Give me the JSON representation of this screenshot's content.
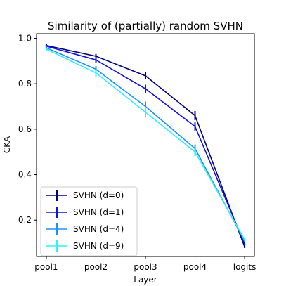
{
  "chart_data": {
    "type": "line",
    "title": "Similarity of (partially) random SVHN",
    "xlabel": "Layer",
    "ylabel": "CKA",
    "categories": [
      "pool1",
      "pool2",
      "pool3",
      "pool4",
      "logits"
    ],
    "ylim": [
      0.04,
      1.02
    ],
    "yticks": [
      0.2,
      0.4,
      0.6,
      0.8,
      1.0
    ],
    "ytick_labels": [
      "0.2",
      "0.4",
      "0.6",
      "0.8",
      "1.0"
    ],
    "grid": false,
    "legend_position": "lower-left",
    "series": [
      {
        "name": "SVHN (d=0)",
        "color": "#000080",
        "values": [
          0.968,
          0.921,
          0.835,
          0.66,
          0.083
        ],
        "errors": [
          0.006,
          0.01,
          0.015,
          0.02,
          0.006
        ]
      },
      {
        "name": "SVHN (d=1)",
        "color": "#1010e0",
        "values": [
          0.965,
          0.905,
          0.778,
          0.612,
          0.095
        ],
        "errors": [
          0.006,
          0.012,
          0.018,
          0.018,
          0.006
        ]
      },
      {
        "name": "SVHN (d=4)",
        "color": "#1e90ff",
        "values": [
          0.958,
          0.864,
          0.7,
          0.515,
          0.108
        ],
        "errors": [
          0.006,
          0.014,
          0.022,
          0.018,
          0.006
        ]
      },
      {
        "name": "SVHN (d=9)",
        "color": "#33f2f2",
        "values": [
          0.952,
          0.848,
          0.675,
          0.5,
          0.115
        ],
        "errors": [
          0.006,
          0.016,
          0.024,
          0.018,
          0.006
        ]
      }
    ]
  }
}
